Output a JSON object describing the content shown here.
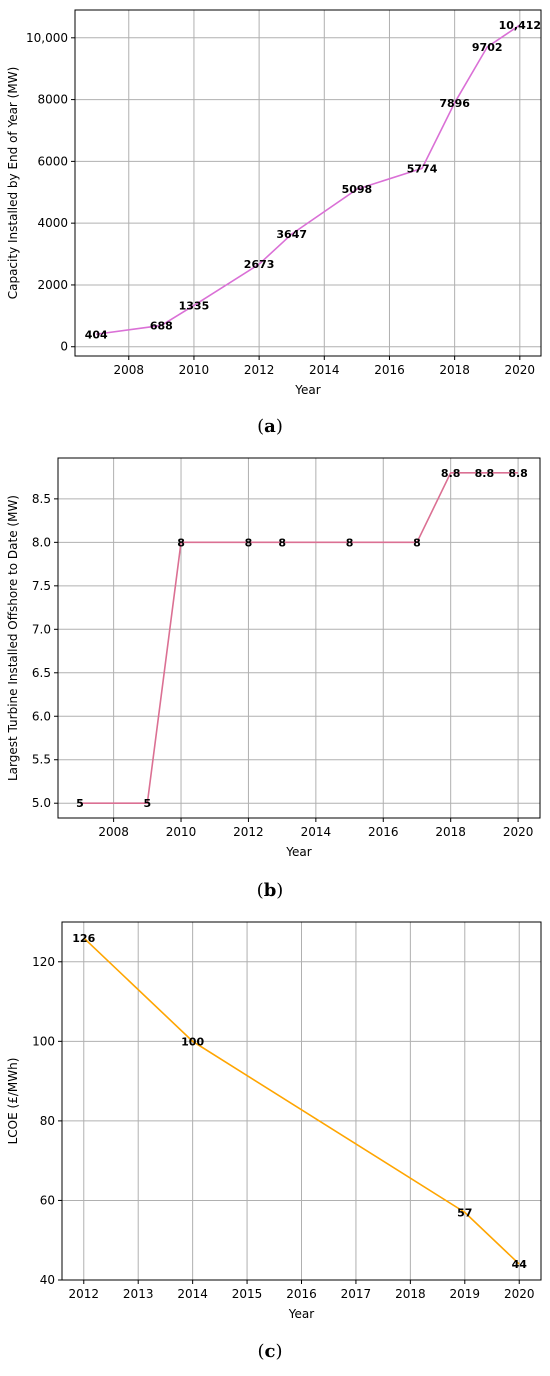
{
  "chart_data": [
    {
      "type": "line",
      "caption_letter": "a",
      "x": [
        2007,
        2009,
        2010,
        2012,
        2013,
        2015,
        2017,
        2018,
        2019,
        2020
      ],
      "values": [
        404,
        688,
        1335,
        2673,
        3647,
        5098,
        5774,
        7896,
        9702,
        10412
      ],
      "data_labels": [
        "404",
        "688",
        "1335",
        "2673",
        "3647",
        "5098",
        "5774",
        "7896",
        "9702",
        "10,412"
      ],
      "xlabel": "Year",
      "ylabel": "Capacity Installed by End of Year (MW)",
      "xlim": [
        2006.35,
        2020.65
      ],
      "ylim": [
        -300,
        10900
      ],
      "xticks": [
        2008,
        2010,
        2012,
        2014,
        2016,
        2018,
        2020
      ],
      "xtick_labels": [
        "2008",
        "2010",
        "2012",
        "2014",
        "2016",
        "2018",
        "2020"
      ],
      "yticks": [
        0,
        2000,
        4000,
        6000,
        8000,
        10000
      ],
      "ytick_labels": [
        "0",
        "2000",
        "4000",
        "6000",
        "8000",
        "10,000"
      ],
      "color": "#da70d6",
      "grid": true
    },
    {
      "type": "line",
      "caption_letter": "b",
      "x": [
        2007,
        2009,
        2010,
        2012,
        2013,
        2015,
        2017,
        2018,
        2019,
        2020
      ],
      "values": [
        5,
        5,
        8,
        8,
        8,
        8,
        8,
        8.8,
        8.8,
        8.8
      ],
      "data_labels": [
        "5",
        "5",
        "8",
        "8",
        "8",
        "8",
        "8",
        "8.8",
        "8.8",
        "8.8"
      ],
      "xlabel": "Year",
      "ylabel": "Largest Turbine Installed Offshore to Date (MW)",
      "xlim": [
        2006.35,
        2020.65
      ],
      "ylim": [
        4.83,
        8.97
      ],
      "xticks": [
        2008,
        2010,
        2012,
        2014,
        2016,
        2018,
        2020
      ],
      "xtick_labels": [
        "2008",
        "2010",
        "2012",
        "2014",
        "2016",
        "2018",
        "2020"
      ],
      "yticks": [
        5.0,
        5.5,
        6.0,
        6.5,
        7.0,
        7.5,
        8.0,
        8.5
      ],
      "ytick_labels": [
        "5.0",
        "5.5",
        "6.0",
        "6.5",
        "7.0",
        "7.5",
        "8.0",
        "8.5"
      ],
      "color": "#db7093",
      "grid": true
    },
    {
      "type": "line",
      "caption_letter": "c",
      "x": [
        2012,
        2014,
        2019,
        2020
      ],
      "values": [
        126,
        100,
        57,
        44
      ],
      "data_labels": [
        "126",
        "100",
        "57",
        "44"
      ],
      "xlabel": "Year",
      "ylabel": "LCOE (£/MWh)",
      "xlim": [
        2011.6,
        2020.4
      ],
      "ylim": [
        40,
        130
      ],
      "xticks": [
        2012,
        2013,
        2014,
        2015,
        2016,
        2017,
        2018,
        2019,
        2020
      ],
      "xtick_labels": [
        "2012",
        "2013",
        "2014",
        "2015",
        "2016",
        "2017",
        "2018",
        "2019",
        "2020"
      ],
      "yticks": [
        40,
        60,
        80,
        100,
        120
      ],
      "ytick_labels": [
        "40",
        "60",
        "80",
        "100",
        "120"
      ],
      "color": "#ffa500",
      "grid": true
    }
  ]
}
